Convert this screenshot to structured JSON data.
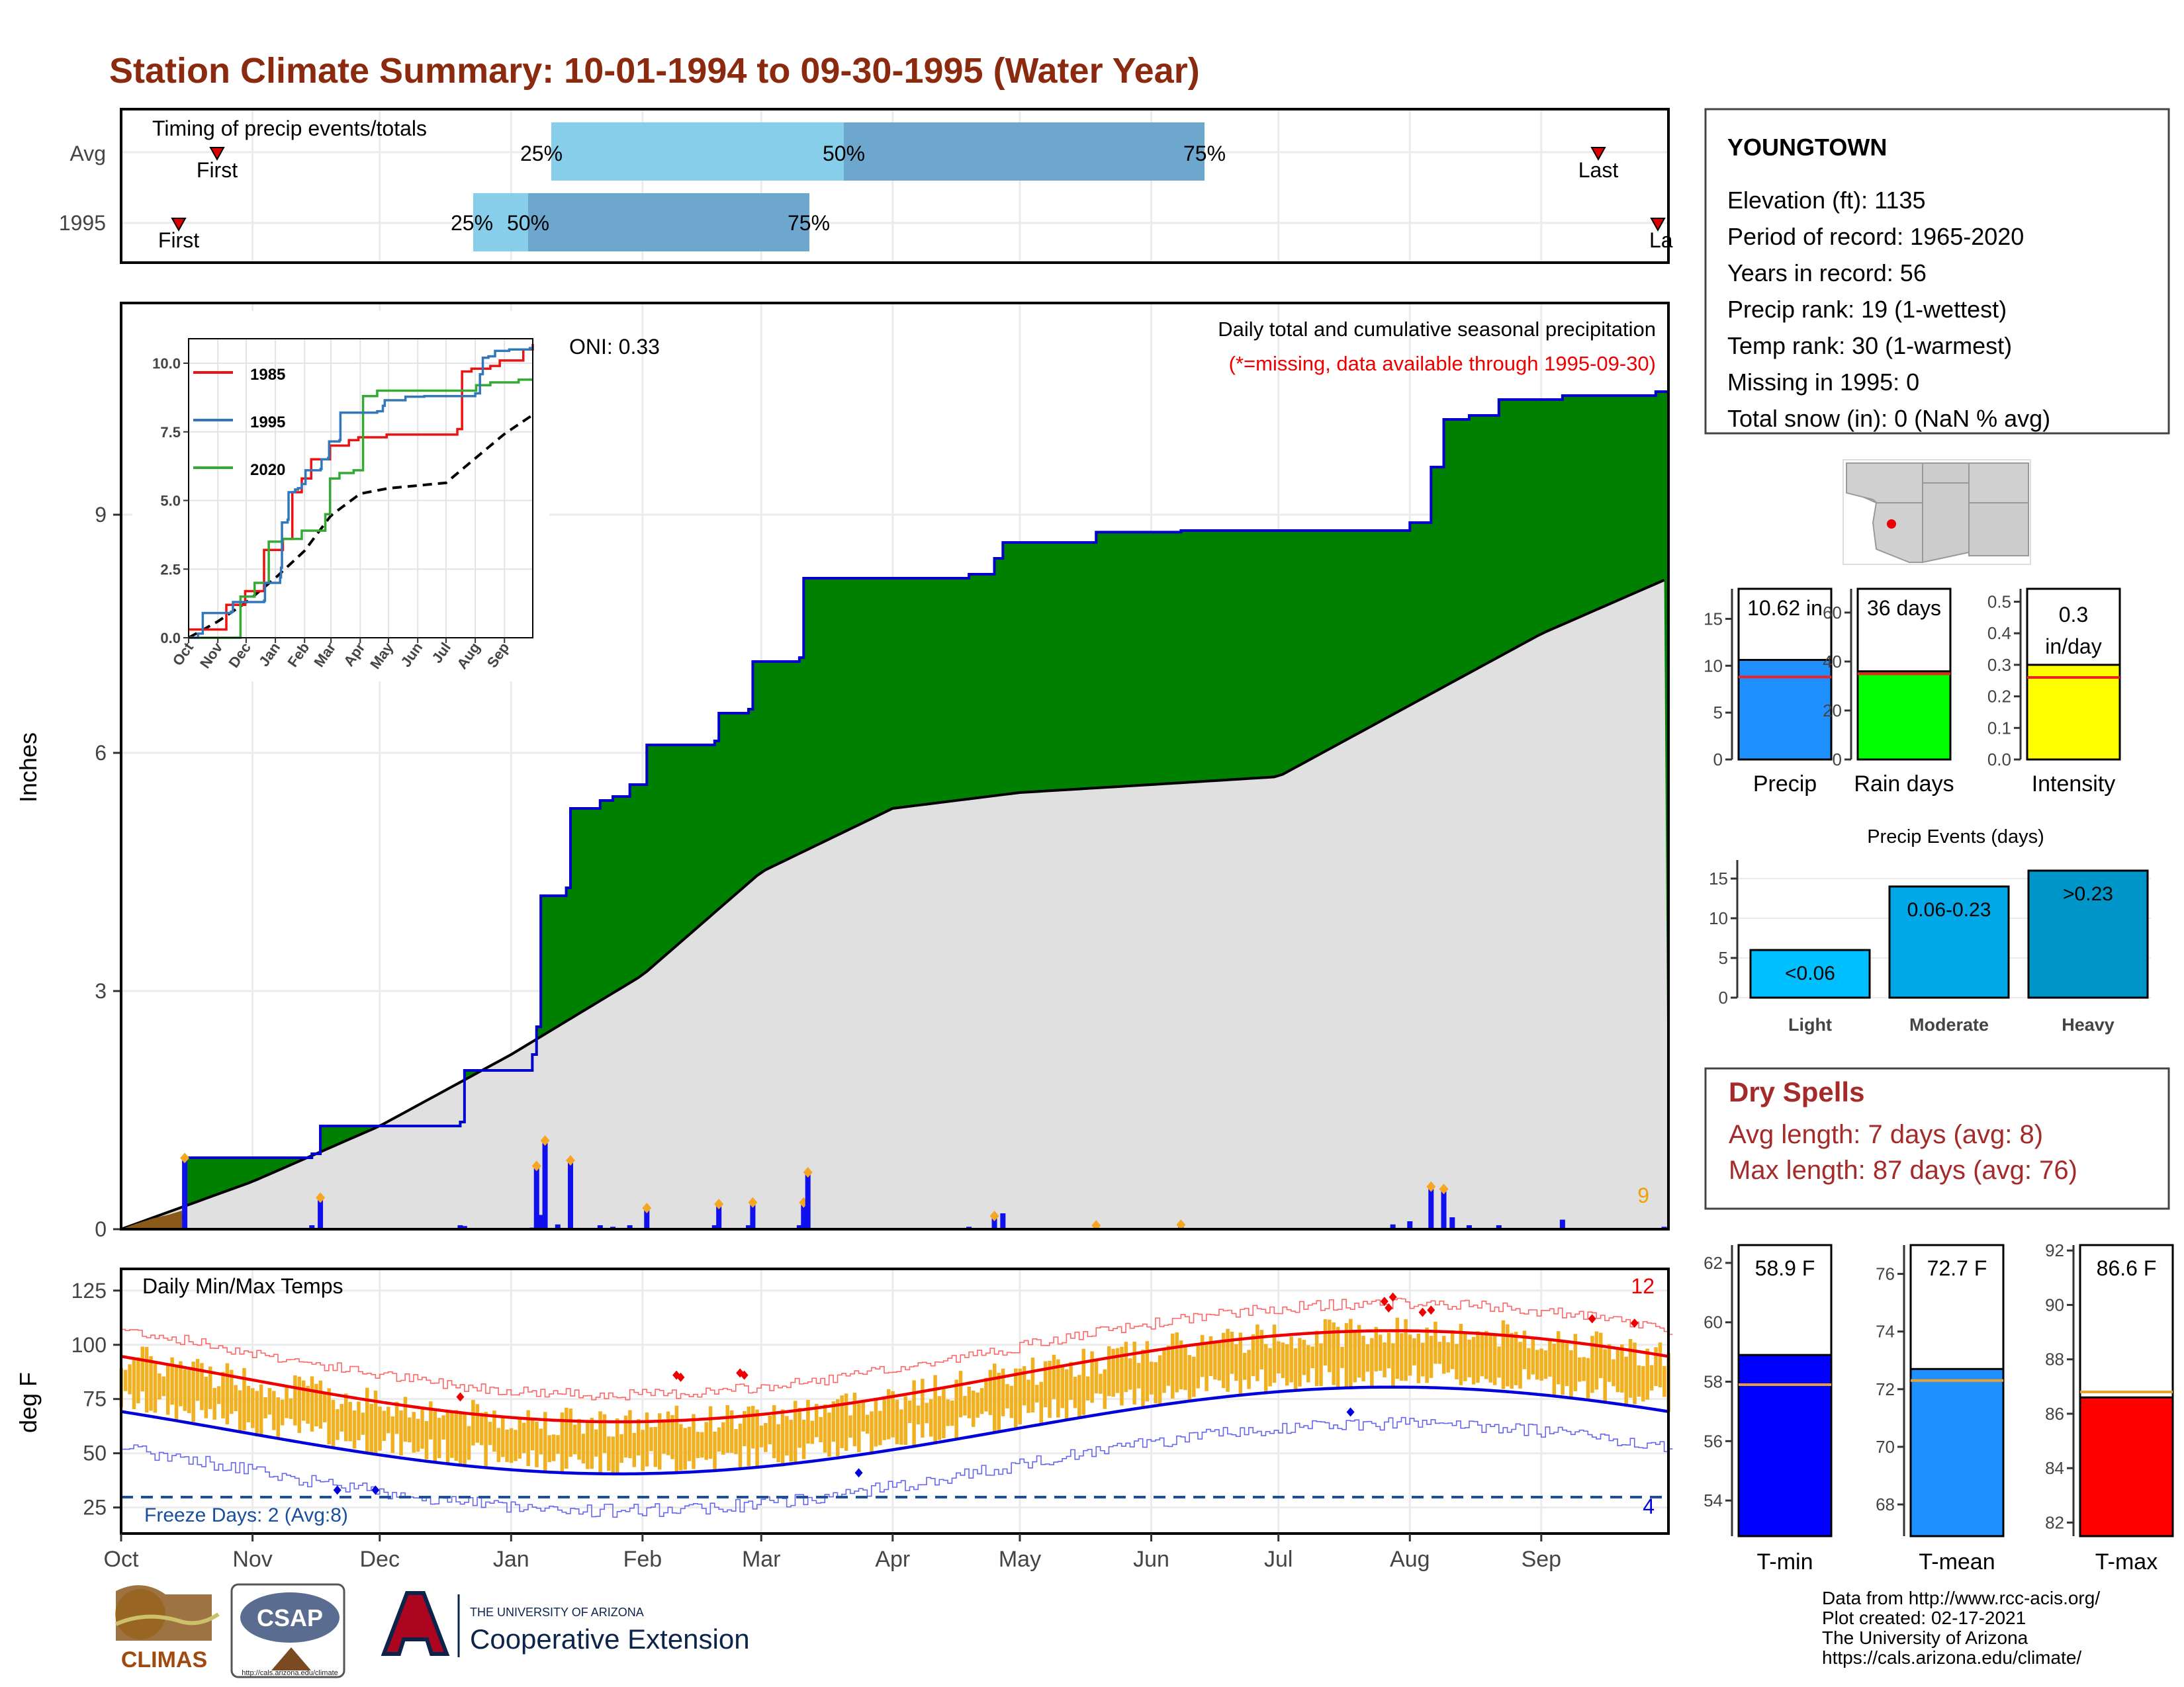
{
  "title": "Station Climate Summary: 10-01-1994 to 09-30-1995 (Water Year)",
  "months": [
    "Oct",
    "Nov",
    "Dec",
    "Jan",
    "Feb",
    "Mar",
    "Apr",
    "May",
    "Jun",
    "Jul",
    "Aug",
    "Sep"
  ],
  "timing": {
    "label": "Timing of precip events/totals",
    "rows": [
      "Avg",
      "1995"
    ],
    "avg": {
      "q25": "25%",
      "q50": "50%",
      "q75": "75%",
      "first": "First",
      "last": "Last"
    },
    "year": {
      "q25": "25%",
      "q50": "50%",
      "q75": "75%",
      "first": "First",
      "last": "La"
    }
  },
  "precip_panel": {
    "ylabel": "Inches",
    "yticks": [
      "0",
      "3",
      "6",
      "9"
    ],
    "oni": "ONI: 0.33",
    "note1": "Daily total and cumulative seasonal precipitation",
    "note2": "(*=missing, data available through 1995-09-30)",
    "corner_count": "9"
  },
  "inset": {
    "yticks": [
      "0.0",
      "2.5",
      "5.0",
      "7.5",
      "10.0"
    ],
    "xticks": [
      "Oct",
      "Nov",
      "Dec",
      "Jan",
      "Feb",
      "Mar",
      "Apr",
      "May",
      "Jun",
      "Jul",
      "Aug",
      "Sep"
    ],
    "legend": [
      "1985",
      "1995",
      "2020"
    ]
  },
  "temp_panel": {
    "ylabel": "deg F",
    "yticks": [
      "25",
      "50",
      "75",
      "100",
      "125"
    ],
    "title": "Daily Min/Max Temps",
    "freeze": "Freeze Days: 2 (Avg:8)",
    "count_hot": "12",
    "count_cold": "4"
  },
  "station": {
    "name": "YOUNGTOWN",
    "lines": [
      "Elevation (ft): 1135",
      "Period of record: 1965-2020",
      "Years in record: 56",
      "Precip rank: 19 (1-wettest)",
      "Temp rank: 30 (1-warmest)",
      "Missing in 1995: 0",
      "Total snow (in): 0 (NaN % avg)"
    ]
  },
  "stat_bars": {
    "precip": {
      "label": "Precip",
      "value": "10.62 in",
      "yticks": [
        "0",
        "5",
        "10",
        "15"
      ]
    },
    "raindays": {
      "label": "Rain days",
      "value": "36 days",
      "yticks": [
        "0",
        "20",
        "40",
        "60"
      ]
    },
    "intensity": {
      "label": "Intensity",
      "value1": "0.3",
      "value2": "in/day",
      "yticks": [
        "0.0",
        "0.1",
        "0.2",
        "0.3",
        "0.4",
        "0.5"
      ]
    }
  },
  "events": {
    "title": "Precip Events (days)",
    "yticks": [
      "0",
      "5",
      "10",
      "15"
    ],
    "bars": [
      {
        "name": "Light",
        "label": "<0.06",
        "value": 6
      },
      {
        "name": "Moderate",
        "label": "0.06-0.23",
        "value": 14
      },
      {
        "name": "Heavy",
        "label": ">0.23",
        "value": 16
      }
    ]
  },
  "dry_spells": {
    "title": "Dry Spells",
    "avg": "Avg length: 7 days (avg: 8)",
    "max": "Max length: 87 days (avg: 76)"
  },
  "temp_bars": {
    "tmin": {
      "label": "T-min",
      "value": "58.9 F",
      "yticks": [
        "54",
        "56",
        "58",
        "60",
        "62"
      ]
    },
    "tmean": {
      "label": "T-mean",
      "value": "72.7 F",
      "yticks": [
        "68",
        "70",
        "72",
        "74",
        "76"
      ]
    },
    "tmax": {
      "label": "T-max",
      "value": "86.6 F",
      "yticks": [
        "82",
        "84",
        "86",
        "88",
        "90",
        "92"
      ]
    }
  },
  "footer": {
    "lines": [
      "Data from http://www.rcc-acis.org/",
      "Plot created: 02-17-2021",
      "The University of Arizona",
      "https://cals.arizona.edu/climate/"
    ],
    "logo_climas": "CLIMAS",
    "logo_csap": "CSAP",
    "logo_csap_url": "http://cals.arizona.edu/climate",
    "ua_small": "THE UNIVERSITY OF ARIZONA",
    "ua_big": "Cooperative Extension"
  },
  "colors": {
    "green": "#008000",
    "gray": "#e0e0e0",
    "blue": "#0000ee",
    "orange": "#f0b020",
    "red": "#ee0000",
    "title": "#8b2a0e",
    "drytxt": "#a52a2a"
  },
  "chart_data": {
    "type": "area",
    "title": "Daily total and cumulative seasonal precipitation",
    "ylabel": "Inches",
    "ylim": [
      0,
      10.6
    ],
    "series": [
      {
        "name": "cumulative 1995",
        "x": [
          "10-01",
          "10-16",
          "11-16",
          "12-20",
          "01-06",
          "01-16",
          "01-23",
          "02-01",
          "02-17",
          "03-08",
          "03-26",
          "04-25",
          "05-06",
          "05-31",
          "07-31",
          "08-11",
          "08-26",
          "09-29"
        ],
        "values": [
          0.0,
          0.9,
          1.3,
          2.0,
          4.2,
          5.3,
          5.6,
          6.1,
          6.6,
          8.2,
          8.25,
          8.65,
          8.8,
          8.8,
          8.85,
          10.2,
          10.5,
          10.62
        ]
      },
      {
        "x": [
          "10-01",
          "11-01",
          "12-01",
          "01-01",
          "02-01",
          "03-01",
          "04-01",
          "05-01",
          "06-01",
          "07-01",
          "08-01",
          "09-01",
          "09-30"
        ],
        "values": [
          0.0,
          0.6,
          1.3,
          2.2,
          3.2,
          4.5,
          5.3,
          5.5,
          5.6,
          5.7,
          6.6,
          7.5,
          8.2
        ]
      }
    ]
  }
}
